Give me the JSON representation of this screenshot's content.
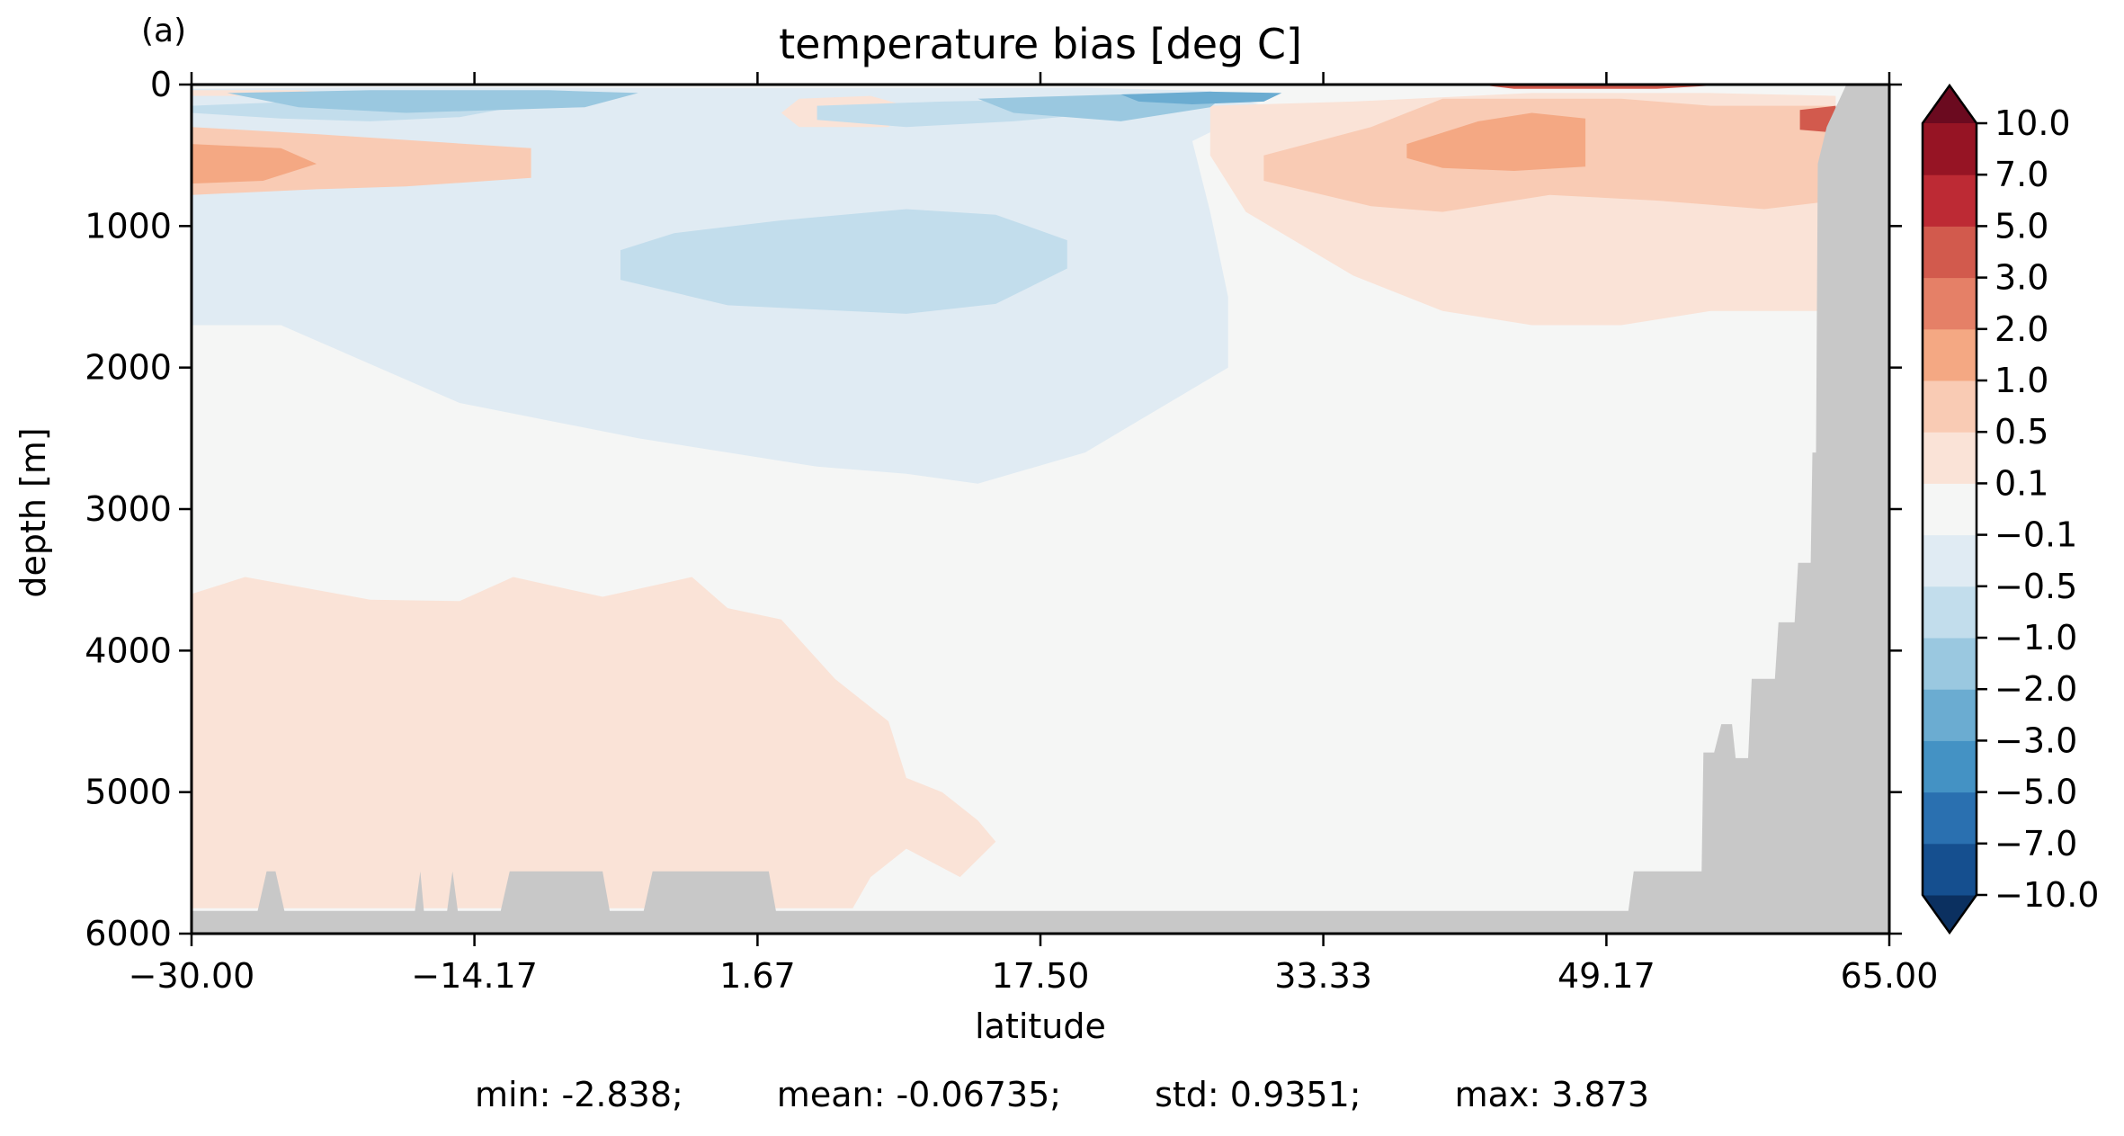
{
  "panel_label": "(a)",
  "stats": {
    "min": "min: -2.838;",
    "mean": "mean: -0.06735;",
    "std": "std: 0.9351;",
    "max": "max: 3.873"
  },
  "chart_data": {
    "type": "heatmap",
    "subtype": "filled-contour depth-latitude section",
    "title": "temperature bias [deg C]",
    "xlabel": "latitude",
    "ylabel": "depth [m]",
    "xlim": [
      -30.0,
      65.0
    ],
    "ylim": [
      6000,
      0
    ],
    "xticks": [
      -30.0,
      -14.17,
      1.67,
      17.5,
      33.33,
      49.17,
      65.0
    ],
    "xtick_labels": [
      "−30.00",
      "−14.17",
      "1.67",
      "17.50",
      "33.33",
      "49.17",
      "65.00"
    ],
    "yticks": [
      0,
      1000,
      2000,
      3000,
      4000,
      5000,
      6000
    ],
    "ytick_labels": [
      "0",
      "1000",
      "2000",
      "3000",
      "4000",
      "5000",
      "6000"
    ],
    "colorbar": {
      "levels": [
        -10.0,
        -7.0,
        -5.0,
        -3.0,
        -2.0,
        -1.0,
        -0.5,
        -0.1,
        0.1,
        0.5,
        1.0,
        2.0,
        3.0,
        5.0,
        7.0,
        10.0
      ],
      "tick_labels": [
        "−10.0",
        "−7.0",
        "−5.0",
        "−3.0",
        "−2.0",
        "−1.0",
        "−0.5",
        "−0.1",
        "0.1",
        "0.5",
        "1.0",
        "2.0",
        "3.0",
        "5.0",
        "7.0",
        "10.0"
      ],
      "colors": [
        "#154f8f",
        "#2a70b0",
        "#4492c4",
        "#6bacd1",
        "#9ac8e0",
        "#c2ddec",
        "#e0ebf3",
        "#f5f6f5",
        "#fae3d7",
        "#f9cbb4",
        "#f4a883",
        "#e58067",
        "#d25a4d",
        "#bd2a34",
        "#961424"
      ],
      "extend_low_color": "#0b3060",
      "extend_high_color": "#6b0a1f",
      "extend": "both"
    },
    "background_value": -0.05,
    "regions": [
      {
        "value": -0.3,
        "points": [
          [
            -30,
            30
          ],
          [
            -20,
            20
          ],
          [
            0,
            25
          ],
          [
            20,
            22
          ],
          [
            27,
            45
          ],
          [
            30,
            150
          ],
          [
            26,
            400
          ],
          [
            27,
            900
          ],
          [
            28,
            1500
          ],
          [
            28,
            2000
          ],
          [
            20,
            2600
          ],
          [
            14,
            2820
          ],
          [
            10,
            2750
          ],
          [
            5,
            2700
          ],
          [
            -5,
            2500
          ],
          [
            -15,
            2250
          ],
          [
            -25,
            1700
          ],
          [
            -30,
            1700
          ]
        ]
      },
      {
        "value": 0.3,
        "points": [
          [
            -30,
            3600
          ],
          [
            -27,
            3480
          ],
          [
            -20,
            3640
          ],
          [
            -15,
            3650
          ],
          [
            -12,
            3480
          ],
          [
            -7,
            3620
          ],
          [
            -2,
            3480
          ],
          [
            0,
            3700
          ],
          [
            3,
            3780
          ],
          [
            6,
            4200
          ],
          [
            9,
            4500
          ],
          [
            10,
            4900
          ],
          [
            12,
            5000
          ],
          [
            14,
            5200
          ],
          [
            15,
            5350
          ],
          [
            13,
            5600
          ],
          [
            10,
            5400
          ],
          [
            8,
            5600
          ],
          [
            7,
            5820
          ],
          [
            -30,
            5820
          ]
        ]
      },
      {
        "value": 0.3,
        "points": [
          [
            27,
            150
          ],
          [
            35,
            120
          ],
          [
            45,
            60
          ],
          [
            55,
            60
          ],
          [
            62,
            80
          ],
          [
            62,
            1600
          ],
          [
            55,
            1600
          ],
          [
            50,
            1700
          ],
          [
            45,
            1700
          ],
          [
            40,
            1600
          ],
          [
            35,
            1350
          ],
          [
            29,
            900
          ],
          [
            27,
            500
          ]
        ]
      },
      {
        "value": 0.3,
        "points": [
          [
            -30,
            40
          ],
          [
            -24,
            40
          ],
          [
            -22,
            60
          ],
          [
            -25,
            80
          ],
          [
            -30,
            80
          ]
        ]
      },
      {
        "value": 0.3,
        "points": [
          [
            4,
            100
          ],
          [
            8,
            80
          ],
          [
            10,
            150
          ],
          [
            9,
            300
          ],
          [
            4,
            300
          ],
          [
            3,
            200
          ]
        ]
      },
      {
        "value": -0.3,
        "points": [
          [
            61.5,
            2150
          ],
          [
            63,
            2150
          ],
          [
            63,
            2950
          ],
          [
            61.5,
            2900
          ]
        ]
      },
      {
        "value": 0.75,
        "points": [
          [
            -30,
            300
          ],
          [
            -23,
            350
          ],
          [
            -11,
            450
          ],
          [
            -11,
            660
          ],
          [
            -18,
            720
          ],
          [
            -23,
            740
          ],
          [
            -30,
            780
          ]
        ]
      },
      {
        "value": 0.75,
        "points": [
          [
            30,
            500
          ],
          [
            36,
            300
          ],
          [
            40,
            100
          ],
          [
            50,
            100
          ],
          [
            55,
            150
          ],
          [
            62,
            150
          ],
          [
            62,
            820
          ],
          [
            58,
            880
          ],
          [
            52,
            820
          ],
          [
            46,
            780
          ],
          [
            40,
            900
          ],
          [
            36,
            860
          ],
          [
            30,
            680
          ]
        ]
      },
      {
        "value": 1.5,
        "points": [
          [
            -30,
            420
          ],
          [
            -25,
            450
          ],
          [
            -23,
            560
          ],
          [
            -26,
            680
          ],
          [
            -30,
            700
          ]
        ]
      },
      {
        "value": 1.5,
        "points": [
          [
            38,
            420
          ],
          [
            42,
            260
          ],
          [
            45,
            200
          ],
          [
            48,
            240
          ],
          [
            48,
            580
          ],
          [
            44,
            610
          ],
          [
            40,
            590
          ],
          [
            38,
            520
          ]
        ]
      },
      {
        "value": -0.75,
        "points": [
          [
            -30,
            150
          ],
          [
            -20,
            100
          ],
          [
            -12,
            160
          ],
          [
            -15,
            230
          ],
          [
            -20,
            260
          ],
          [
            -25,
            240
          ],
          [
            -30,
            200
          ]
        ]
      },
      {
        "value": -0.75,
        "points": [
          [
            -6,
            1170
          ],
          [
            -3,
            1050
          ],
          [
            3,
            960
          ],
          [
            10,
            880
          ],
          [
            15,
            920
          ],
          [
            19,
            1100
          ],
          [
            19,
            1300
          ],
          [
            15,
            1550
          ],
          [
            10,
            1620
          ],
          [
            0,
            1560
          ],
          [
            -6,
            1380
          ]
        ]
      },
      {
        "value": -0.75,
        "points": [
          [
            5,
            150
          ],
          [
            12,
            120
          ],
          [
            20,
            100
          ],
          [
            25,
            120
          ],
          [
            22,
            190
          ],
          [
            16,
            260
          ],
          [
            10,
            300
          ],
          [
            5,
            250
          ]
        ]
      },
      {
        "value": -1.5,
        "points": [
          [
            -28,
            60
          ],
          [
            -20,
            40
          ],
          [
            -10,
            40
          ],
          [
            -5,
            60
          ],
          [
            -8,
            160
          ],
          [
            -18,
            200
          ],
          [
            -24,
            160
          ]
        ]
      },
      {
        "value": -1.5,
        "points": [
          [
            14,
            100
          ],
          [
            22,
            70
          ],
          [
            28,
            60
          ],
          [
            27,
            160
          ],
          [
            22,
            260
          ],
          [
            16,
            200
          ]
        ]
      },
      {
        "value": -2.5,
        "points": [
          [
            22,
            70
          ],
          [
            27,
            50
          ],
          [
            31,
            60
          ],
          [
            30,
            120
          ],
          [
            26,
            140
          ],
          [
            23,
            120
          ]
        ]
      },
      {
        "value": 4.0,
        "points": [
          [
            60,
            180
          ],
          [
            62,
            150
          ],
          [
            62,
            340
          ],
          [
            60,
            320
          ]
        ]
      },
      {
        "value": 4.0,
        "points": [
          [
            42,
            0
          ],
          [
            56,
            0
          ],
          [
            52,
            30
          ],
          [
            44,
            30
          ]
        ]
      }
    ],
    "land_mask": {
      "color": "#c8c8c8",
      "points": [
        [
          -30,
          6000
        ],
        [
          -30,
          5840
        ],
        [
          -26.3,
          5840
        ],
        [
          -25.8,
          5560
        ],
        [
          -25.3,
          5560
        ],
        [
          -24.8,
          5840
        ],
        [
          -17.5,
          5840
        ],
        [
          -17.2,
          5560
        ],
        [
          -17,
          5840
        ],
        [
          -15.7,
          5840
        ],
        [
          -15.4,
          5560
        ],
        [
          -15.1,
          5840
        ],
        [
          -12.7,
          5840
        ],
        [
          -12.2,
          5560
        ],
        [
          -7,
          5560
        ],
        [
          -6.6,
          5840
        ],
        [
          -4.7,
          5840
        ],
        [
          -4.2,
          5560
        ],
        [
          2.3,
          5560
        ],
        [
          2.7,
          5840
        ],
        [
          50.4,
          5840
        ],
        [
          50.7,
          5560
        ],
        [
          54.5,
          5560
        ],
        [
          54.6,
          4720
        ],
        [
          55.2,
          4720
        ],
        [
          55.6,
          4520
        ],
        [
          56.2,
          4520
        ],
        [
          56.4,
          4760
        ],
        [
          57.1,
          4760
        ],
        [
          57.3,
          4200
        ],
        [
          58.6,
          4200
        ],
        [
          58.8,
          3800
        ],
        [
          59.7,
          3800
        ],
        [
          59.9,
          3380
        ],
        [
          60.6,
          3380
        ],
        [
          60.7,
          2600
        ],
        [
          60.9,
          2600
        ],
        [
          61,
          560
        ],
        [
          61.5,
          300
        ],
        [
          62.6,
          0
        ],
        [
          65,
          0
        ],
        [
          65,
          6000
        ]
      ]
    }
  }
}
